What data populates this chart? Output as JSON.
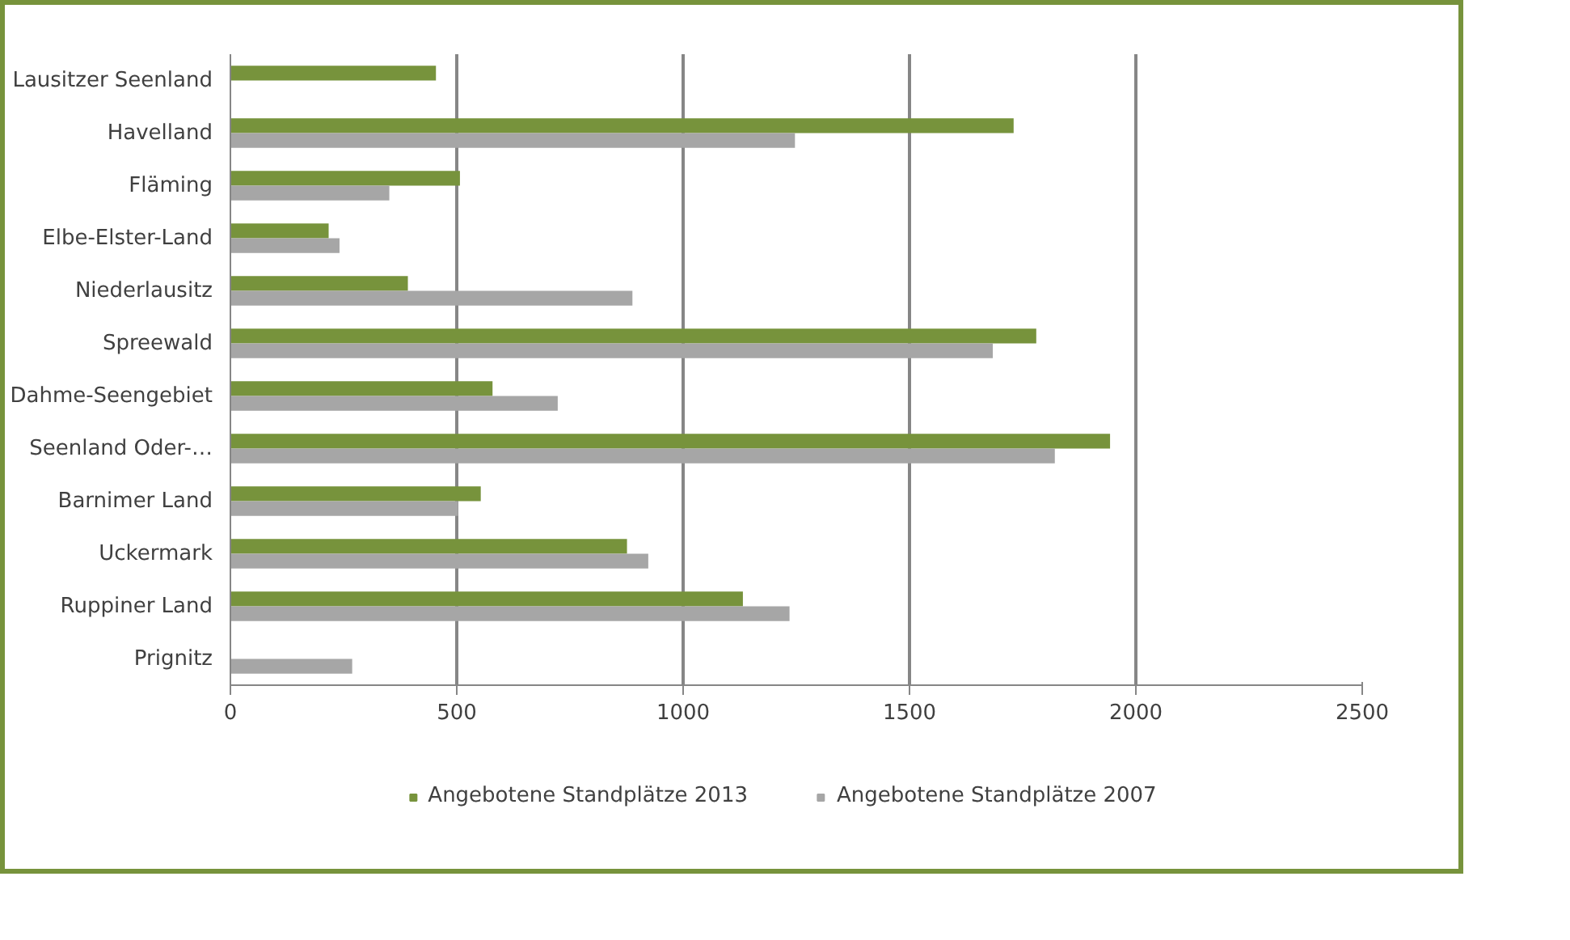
{
  "chart_data": {
    "type": "bar",
    "orientation": "horizontal",
    "categories": [
      "Lausitzer Seenland",
      "Havelland",
      "Fläming",
      "Elbe-Elster-Land",
      "Niederlausitz",
      "Spreewald",
      "Dahme-Seengebiet",
      "Seenland Oder-…",
      "Barnimer Land",
      "Uckermark",
      "Ruppiner Land",
      "Prignitz"
    ],
    "series": [
      {
        "name": "Angebotene Standplätze 2013",
        "color": "#77933c",
        "values": [
          454,
          1730,
          507,
          217,
          392,
          1780,
          579,
          1943,
          553,
          876,
          1132,
          null
        ]
      },
      {
        "name": "Angebotene Standplätze 2007",
        "color": "#a6a6a6",
        "values": [
          null,
          1247,
          351,
          241,
          888,
          1684,
          723,
          1821,
          503,
          923,
          1235,
          269
        ]
      }
    ],
    "xlim": [
      0,
      2500
    ],
    "xticks": [
      0,
      500,
      1000,
      1500,
      2000,
      2500
    ],
    "grid": "x",
    "legend": "bottom"
  }
}
